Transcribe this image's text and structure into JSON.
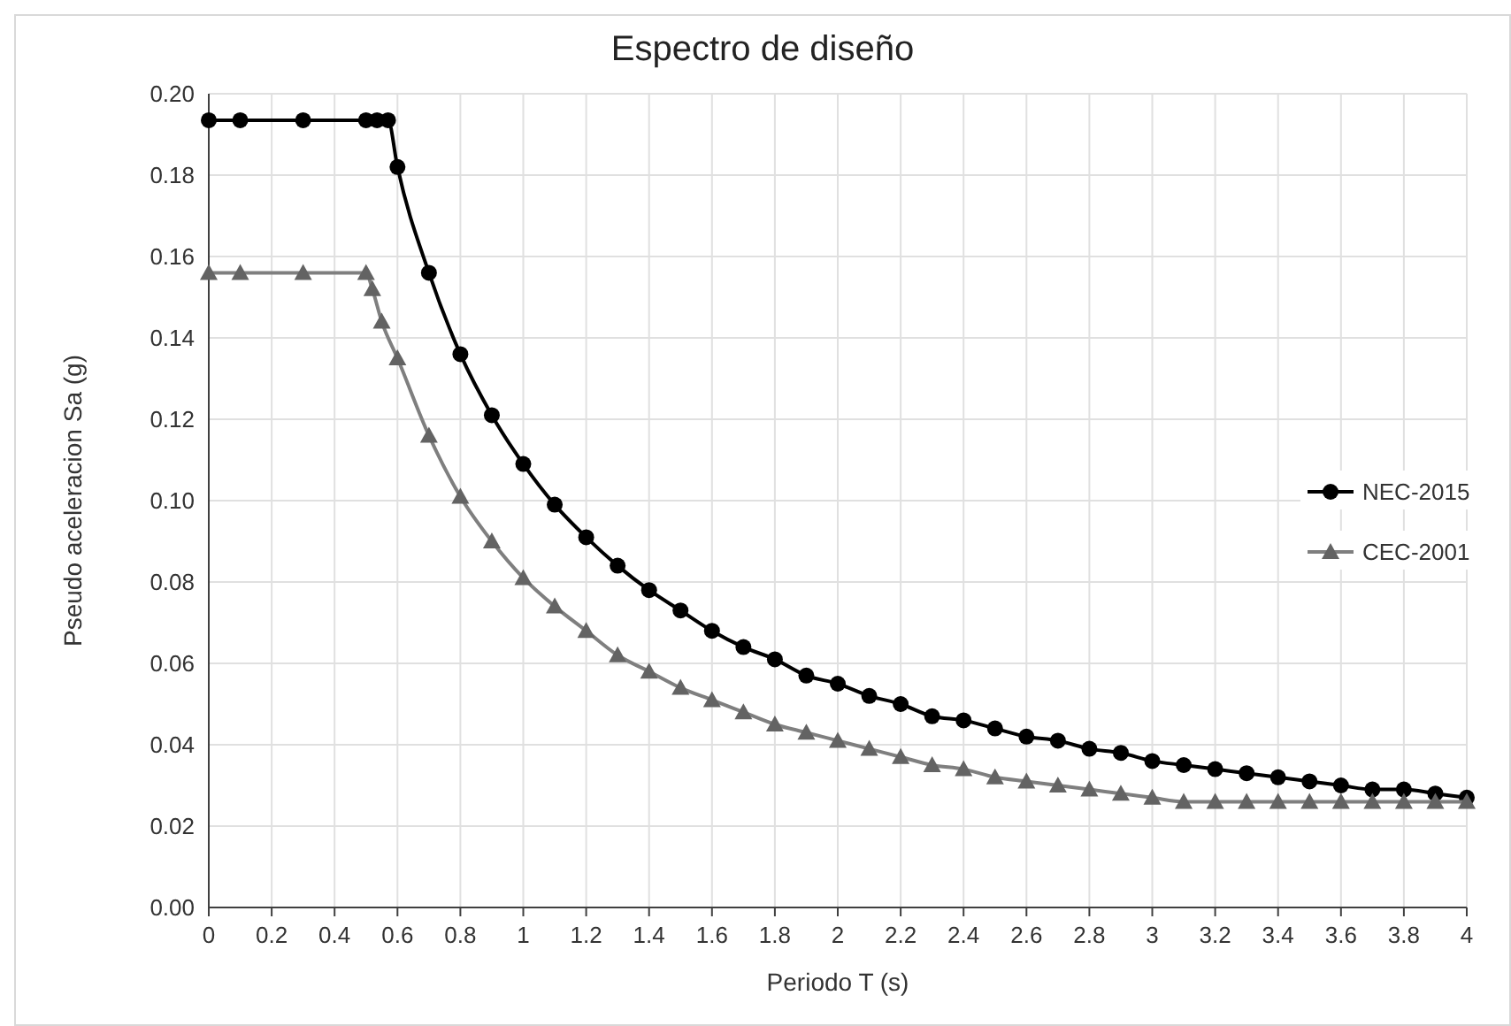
{
  "chart_data": {
    "type": "line",
    "title": "Espectro de diseño",
    "xlabel": "Periodo T (s)",
    "ylabel": "Pseudo aceleracion Sa (g)",
    "xlim": [
      0,
      4
    ],
    "xticks": [
      0,
      0.2,
      0.4,
      0.6,
      0.8,
      1,
      1.2,
      1.4,
      1.6,
      1.8,
      2,
      2.2,
      2.4,
      2.6,
      2.8,
      3,
      3.2,
      3.4,
      3.6,
      3.8,
      4
    ],
    "ylim": [
      0,
      0.2
    ],
    "yticks": [
      {
        "value": 0,
        "label": "0.00"
      },
      {
        "value": 0.02,
        "label": "0.02"
      },
      {
        "value": 0.04,
        "label": "0.04"
      },
      {
        "value": 0.06,
        "label": "0.06"
      },
      {
        "value": 0.08,
        "label": "0.08"
      },
      {
        "value": 0.1,
        "label": "0.10"
      },
      {
        "value": 0.12,
        "label": "0.12"
      },
      {
        "value": 0.14,
        "label": "0.14"
      },
      {
        "value": 0.16,
        "label": "0.16"
      },
      {
        "value": 0.18,
        "label": "0.18"
      },
      {
        "value": 0.2,
        "label": "0.20"
      }
    ],
    "grid": true,
    "legend": "right",
    "series": [
      {
        "name": "NEC-2015",
        "color": "#000000",
        "marker": "circle",
        "x": [
          0,
          0.1,
          0.3,
          0.5,
          0.535,
          0.57,
          0.6,
          0.7,
          0.8,
          0.9,
          1,
          1.1,
          1.2,
          1.3,
          1.4,
          1.5,
          1.6,
          1.7,
          1.8,
          1.9,
          2,
          2.1,
          2.2,
          2.3,
          2.4,
          2.5,
          2.6,
          2.7,
          2.8,
          2.9,
          3,
          3.1,
          3.2,
          3.3,
          3.4,
          3.5,
          3.6,
          3.7,
          3.8,
          3.9,
          4
        ],
        "values": [
          0.1935,
          0.1935,
          0.1935,
          0.1935,
          0.1935,
          0.1935,
          0.182,
          0.156,
          0.136,
          0.121,
          0.109,
          0.099,
          0.091,
          0.084,
          0.078,
          0.073,
          0.068,
          0.064,
          0.061,
          0.057,
          0.055,
          0.052,
          0.05,
          0.047,
          0.046,
          0.044,
          0.042,
          0.041,
          0.039,
          0.038,
          0.036,
          0.035,
          0.034,
          0.033,
          0.032,
          0.031,
          0.03,
          0.029,
          0.029,
          0.028,
          0.027
        ]
      },
      {
        "name": "CEC-2001",
        "color": "#7f7f7f",
        "marker": "triangle",
        "x": [
          0,
          0.1,
          0.3,
          0.5,
          0.52,
          0.55,
          0.6,
          0.7,
          0.8,
          0.9,
          1,
          1.1,
          1.2,
          1.3,
          1.4,
          1.5,
          1.6,
          1.7,
          1.8,
          1.9,
          2,
          2.1,
          2.2,
          2.3,
          2.4,
          2.5,
          2.6,
          2.7,
          2.8,
          2.9,
          3,
          3.1,
          3.2,
          3.3,
          3.4,
          3.5,
          3.6,
          3.7,
          3.8,
          3.9,
          4
        ],
        "values": [
          0.156,
          0.156,
          0.156,
          0.156,
          0.152,
          0.144,
          0.135,
          0.116,
          0.101,
          0.09,
          0.081,
          0.074,
          0.068,
          0.062,
          0.058,
          0.054,
          0.051,
          0.048,
          0.045,
          0.043,
          0.041,
          0.039,
          0.037,
          0.035,
          0.034,
          0.032,
          0.031,
          0.03,
          0.029,
          0.028,
          0.027,
          0.026,
          0.026,
          0.026,
          0.026,
          0.026,
          0.026,
          0.026,
          0.026,
          0.026,
          0.026
        ]
      }
    ]
  }
}
